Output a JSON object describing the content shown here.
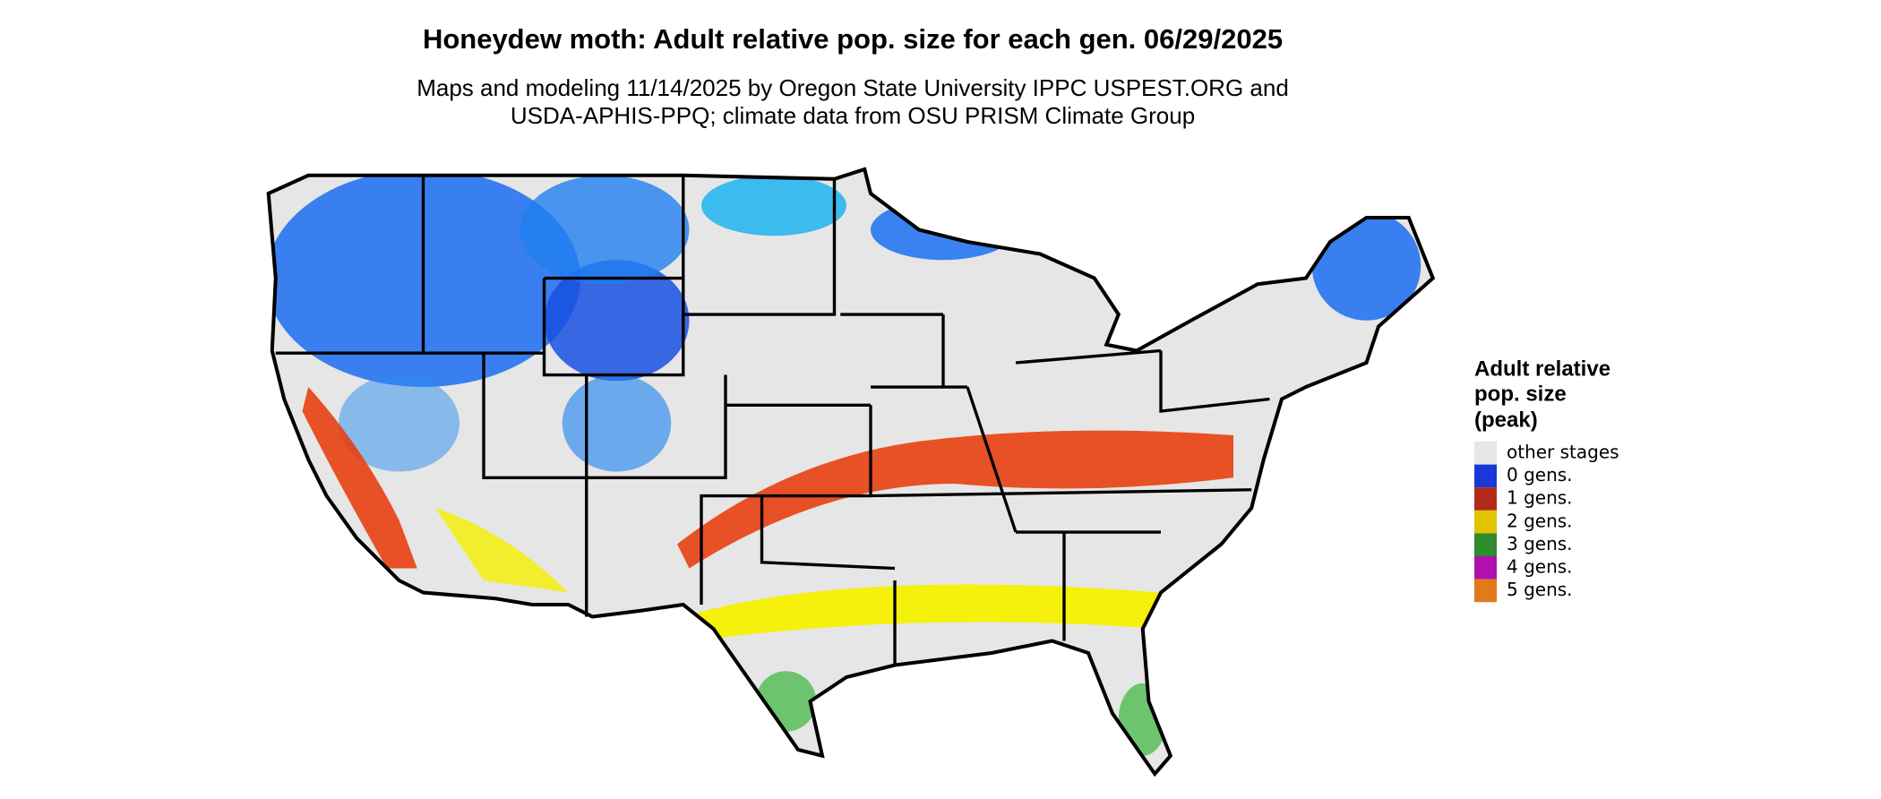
{
  "title": "Honeydew moth: Adult relative pop. size for each gen. 06/29/2025",
  "subtitle": [
    "Maps and modeling 11/14/2025 by Oregon State University IPPC USPEST.ORG and",
    "USDA-APHIS-PPQ; climate data from OSU PRISM Climate Group"
  ],
  "legend": {
    "title": [
      "Adult relative",
      "pop. size",
      "(peak)"
    ],
    "items": [
      {
        "label": "other stages",
        "color": "#e6e6e6"
      },
      {
        "label": "0 gens.",
        "color": "#1838d8"
      },
      {
        "label": "1 gens.",
        "color": "#b22a1a"
      },
      {
        "label": "2 gens.",
        "color": "#e0c400"
      },
      {
        "label": "3 gens.",
        "color": "#2e8b2e"
      },
      {
        "label": "4 gens.",
        "color": "#b010b0"
      },
      {
        "label": "5 gens.",
        "color": "#e07a1a"
      }
    ]
  }
}
